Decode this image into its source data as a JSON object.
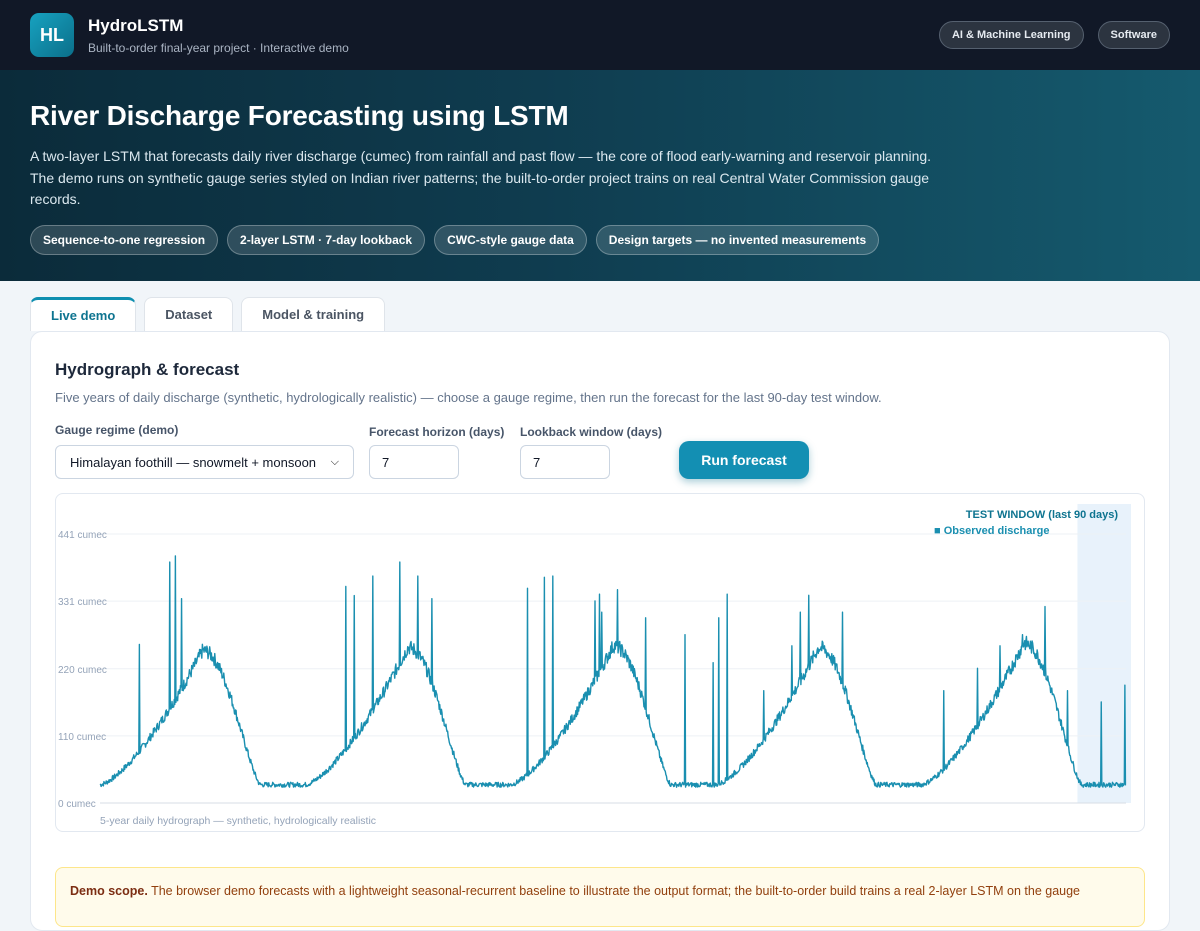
{
  "app": {
    "logo_text": "HL",
    "name": "HydroLSTM",
    "subtitle": "Built-to-order final-year project · Interactive demo",
    "tags": [
      "AI & Machine Learning",
      "Software"
    ]
  },
  "hero": {
    "title": "River Discharge Forecasting using LSTM",
    "description": "A two-layer LSTM that forecasts daily river discharge (cumec) from rainfall and past flow — the core of flood early-warning and reservoir planning. The demo runs on synthetic gauge series styled on Indian river patterns; the built-to-order project trains on real Central Water Commission gauge records.",
    "chips": [
      "Sequence-to-one regression",
      "2-layer LSTM · 7-day lookback",
      "CWC-style gauge data",
      "Design targets — no invented measurements"
    ]
  },
  "tabs": [
    "Live demo",
    "Dataset",
    "Model & training"
  ],
  "panel": {
    "title": "Hydrograph & forecast",
    "subtitle": "Five years of daily discharge (synthetic, hydrologically realistic) — choose a gauge regime, then run the forecast for the last 90-day test window.",
    "regime_label": "Gauge regime (demo)",
    "regime_value": "Himalayan foothill — snowmelt + monsoon",
    "horizon_label": "Forecast horizon (days)",
    "horizon_value": "7",
    "lookback_label": "Lookback window (days)",
    "lookback_value": "7",
    "run_label": "Run forecast"
  },
  "chart_data": {
    "type": "line",
    "title": "",
    "xlabel": "5-year daily hydrograph — synthetic, hydrologically realistic",
    "ylabel": "",
    "y_ticks": [
      "441 cumec",
      "331 cumec",
      "220 cumec",
      "110 cumec",
      "0 cumec"
    ],
    "y_tick_values": [
      441,
      331,
      220,
      110,
      0
    ],
    "ylim": [
      0,
      441
    ],
    "test_window_label": "TEST WINDOW (last 90 days)",
    "legend": "■ Observed discharge",
    "series_color": "#1a8fb0",
    "test_window_color": "#e8f2fb",
    "series": [
      {
        "name": "Observed discharge",
        "yearly_low_cumec": 30,
        "yearly_peak_cumec": [
          250,
          255,
          258,
          255,
          262
        ],
        "spike_peaks_cumec": [
          260,
          395,
          405,
          335,
          165,
          355,
          340,
          372,
          395,
          372,
          335,
          352,
          370,
          372
        ]
      }
    ]
  },
  "note": {
    "label": "Demo scope.",
    "text": "The browser demo forecasts with a lightweight seasonal-recurrent baseline to illustrate the output format; the built-to-order build trains a real 2-layer LSTM on the gauge"
  }
}
